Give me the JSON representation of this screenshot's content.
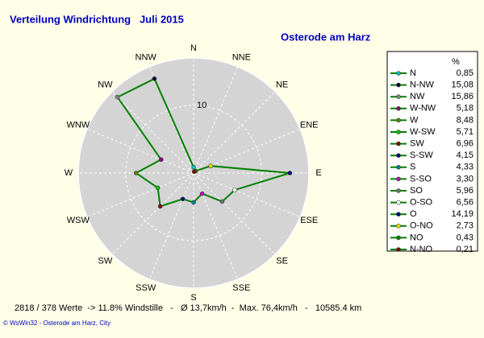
{
  "chart_data": {
    "type": "radar",
    "title": "Verteilung Windrichtung   Juli 2015",
    "subtitle": "Osterode am Harz",
    "directions": [
      "N",
      "NNE",
      "NE",
      "ENE",
      "E",
      "ESE",
      "SE",
      "SSE",
      "S",
      "SSW",
      "SW",
      "WSW",
      "W",
      "WNW",
      "NW",
      "NNW"
    ],
    "legend_title": "%",
    "categories": [
      "N",
      "N-NW",
      "NW",
      "W-NW",
      "W",
      "W-SW",
      "SW",
      "S-SW",
      "S",
      "S-SO",
      "SO",
      "O-SO",
      "O",
      "O-NO",
      "NO",
      "N-NO"
    ],
    "values": [
      0.85,
      15.08,
      15.86,
      5.18,
      8.48,
      5.71,
      6.96,
      4.15,
      4.33,
      3.3,
      5.96,
      6.56,
      14.19,
      2.73,
      0.43,
      0.21
    ],
    "value_labels": [
      "0,85",
      "15,08",
      "15,86",
      "5,18",
      "8,48",
      "5,71",
      "6,96",
      "4,15",
      "4,33",
      "3,30",
      "5,96",
      "6,56",
      "14,19",
      "2,73",
      "0,43",
      "0,21"
    ],
    "colors": [
      "#00c0c0",
      "#000040",
      "#808080",
      "#800080",
      "#608000",
      "#00c000",
      "#800000",
      "#000080",
      "#008080",
      "#c000c0",
      "#707070",
      "#ffffff",
      "#000080",
      "#e0e000",
      "#008000",
      "#800000"
    ],
    "line_color": "#008000",
    "rlim": [
      0,
      17
    ],
    "rticks": [
      10
    ],
    "footer": "2818 / 378 Werte  -> 11.8% Windstille   -   Ø 13,7km/h  -  Max. 76,4km/h   -   10585.4 km",
    "credit": "© WsWin32  -  Osterode am Harz, City"
  }
}
